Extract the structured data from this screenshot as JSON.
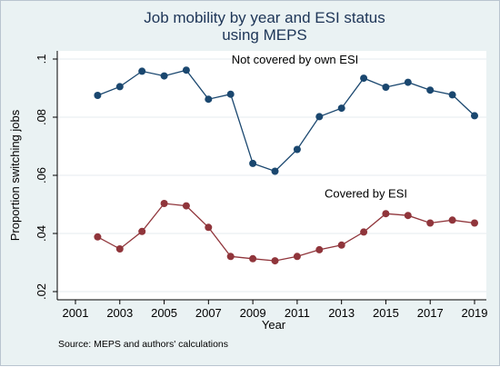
{
  "chart_data": {
    "type": "line",
    "title": [
      "Job mobility by year and ESI status",
      "using MEPS"
    ],
    "xlabel": "Year",
    "ylabel": "Proportion switching jobs",
    "xlim": [
      2001,
      2019
    ],
    "ylim": [
      0.02,
      0.1
    ],
    "x_ticks": [
      2001,
      2003,
      2005,
      2007,
      2009,
      2011,
      2013,
      2015,
      2017,
      2019
    ],
    "x_tick_labels": [
      "2001",
      "2003",
      "2005",
      "2007",
      "2009",
      "2011",
      "2013",
      "2015",
      "2017",
      "2019"
    ],
    "y_ticks": [
      0.02,
      0.04,
      0.06,
      0.08,
      0.1
    ],
    "y_tick_labels": [
      ".02",
      ".04",
      ".06",
      ".08",
      ".1"
    ],
    "grid": "horizontal",
    "note": "Source: MEPS and authors' calculations",
    "series": [
      {
        "name": "Not covered by own ESI",
        "color": "#1a476f",
        "x": [
          2002,
          2003,
          2004,
          2005,
          2006,
          2007,
          2008,
          2009,
          2010,
          2011,
          2012,
          2013,
          2014,
          2015,
          2016,
          2017,
          2018,
          2019
        ],
        "y": [
          0.0875,
          0.0905,
          0.0958,
          0.0942,
          0.0962,
          0.0862,
          0.0879,
          0.0641,
          0.0614,
          0.0689,
          0.0802,
          0.0831,
          0.0934,
          0.0903,
          0.092,
          0.0893,
          0.0877,
          0.0805
        ]
      },
      {
        "name": "Covered by ESI",
        "color": "#90353b",
        "x": [
          2002,
          2003,
          2004,
          2005,
          2006,
          2007,
          2008,
          2009,
          2010,
          2011,
          2012,
          2013,
          2014,
          2015,
          2016,
          2017,
          2018,
          2019
        ],
        "y": [
          0.0388,
          0.0347,
          0.0407,
          0.0503,
          0.0495,
          0.0421,
          0.0321,
          0.0313,
          0.0306,
          0.0321,
          0.0344,
          0.036,
          0.0405,
          0.0468,
          0.0462,
          0.0436,
          0.0446,
          0.0436
        ]
      }
    ],
    "annotations": [
      {
        "text": "Not covered by own ESI",
        "x": 2010.9,
        "y": 0.0985
      },
      {
        "text": "Covered by ESI",
        "x": 2014.1,
        "y": 0.0523
      }
    ]
  }
}
